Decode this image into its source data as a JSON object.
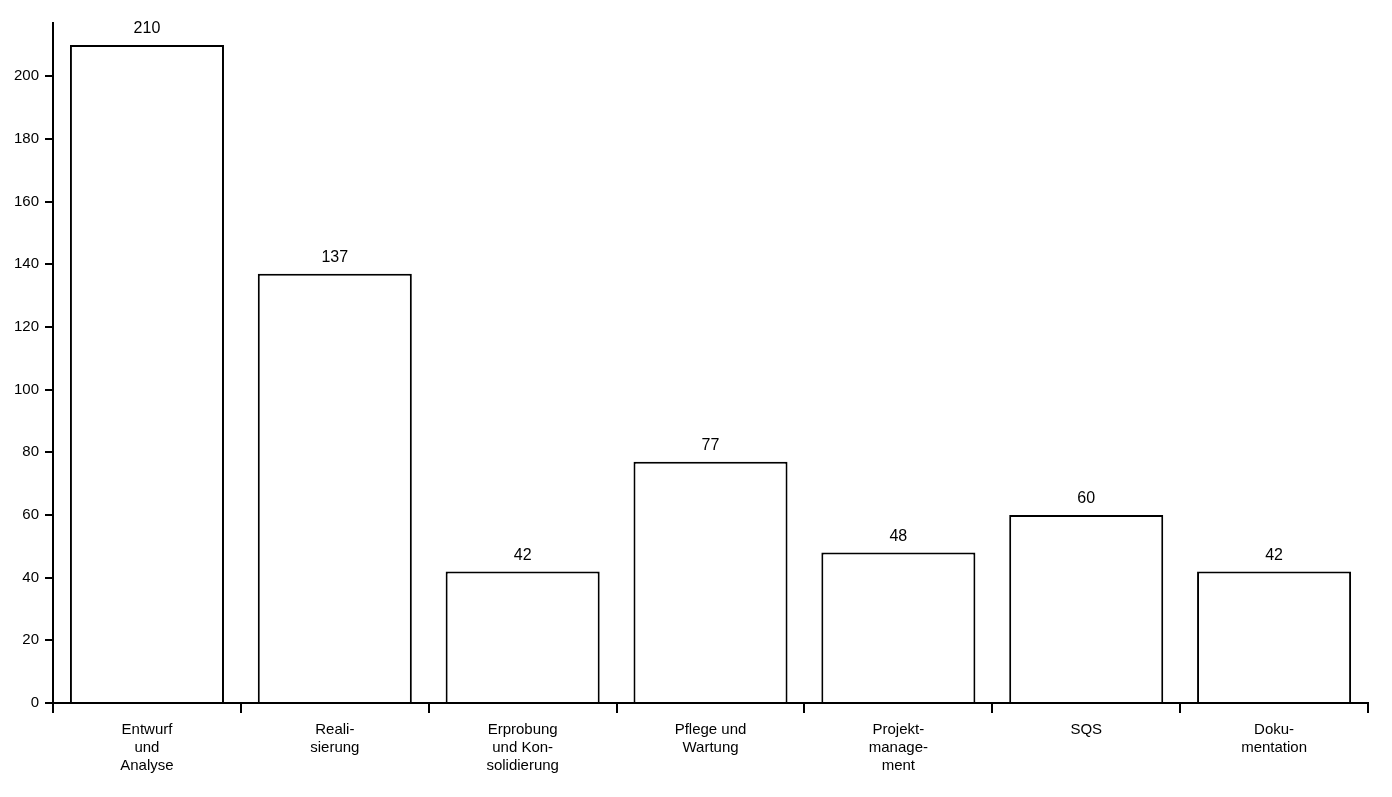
{
  "chart_data": {
    "type": "bar",
    "categories": [
      "Entwurf\nund\nAnalyse",
      "Reali-\nsierung",
      "Erprobung\nund Kon-\nsolidierung",
      "Pflege und\nWartung",
      "Projekt-\nmanage-\nment",
      "SQS",
      "Doku-\nmentation"
    ],
    "values": [
      210,
      137,
      42,
      77,
      48,
      60,
      42
    ],
    "color": "#ffffff",
    "ylim": [
      0,
      217
    ],
    "yticks": [
      0,
      20,
      40,
      60,
      80,
      100,
      120,
      140,
      160,
      180,
      200
    ],
    "data_labels": true,
    "grid": false,
    "legend": false
  }
}
